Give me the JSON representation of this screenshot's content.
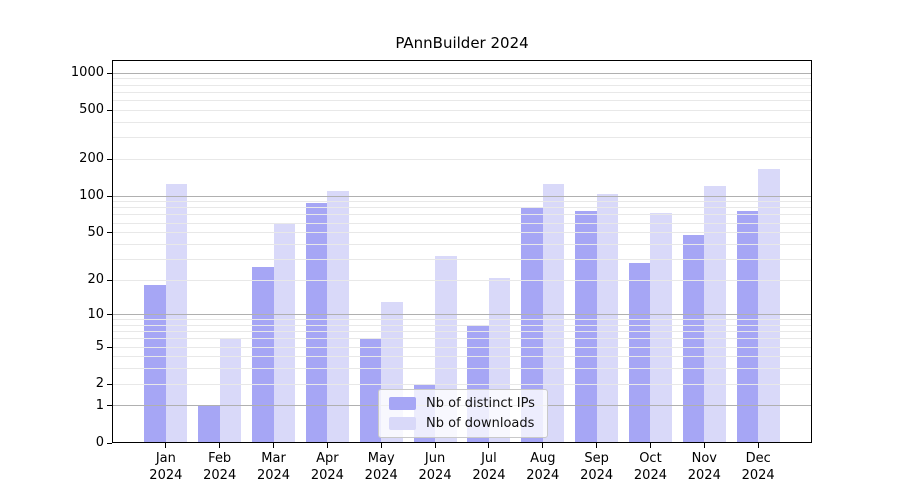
{
  "chart_data": {
    "type": "bar",
    "title": "PAnnBuilder 2024",
    "categories": [
      "Jan",
      "Feb",
      "Mar",
      "Apr",
      "May",
      "Jun",
      "Jul",
      "Aug",
      "Sep",
      "Oct",
      "Nov",
      "Dec"
    ],
    "year_label": "2024",
    "series": [
      {
        "name": "Nb of distinct IPs",
        "color": "#a6a6f5",
        "values": [
          18,
          1,
          26,
          87,
          6,
          2,
          8,
          82,
          75,
          28,
          48,
          76
        ]
      },
      {
        "name": "Nb of downloads",
        "color": "#d9d9f9",
        "values": [
          125,
          6,
          60,
          110,
          13,
          32,
          21,
          125,
          103,
          73,
          120,
          165
        ]
      }
    ],
    "xlabel": "",
    "ylabel": "",
    "yscale": "log1p",
    "ylim": [
      0,
      1280
    ],
    "ytick_values": [
      0,
      1,
      2,
      5,
      10,
      20,
      50,
      100,
      200,
      500,
      1000
    ],
    "ytick_labels": [
      "0",
      "1",
      "2",
      "5",
      "10",
      "20",
      "50",
      "100",
      "200",
      "500",
      "1000"
    ],
    "major_grid_values": [
      1,
      10,
      100,
      1000
    ],
    "minor_grid_values": [
      2,
      3,
      4,
      5,
      6,
      7,
      8,
      9,
      20,
      30,
      40,
      50,
      60,
      70,
      80,
      90,
      200,
      300,
      400,
      500,
      600,
      700,
      800,
      900
    ],
    "grid": true,
    "legend_position": "bottom-center",
    "colors": {
      "major_grid": "#b0b0b0",
      "minor_grid": "#e8e8e8",
      "axis": "#000000",
      "text": "#000000",
      "background": "#ffffff"
    }
  }
}
